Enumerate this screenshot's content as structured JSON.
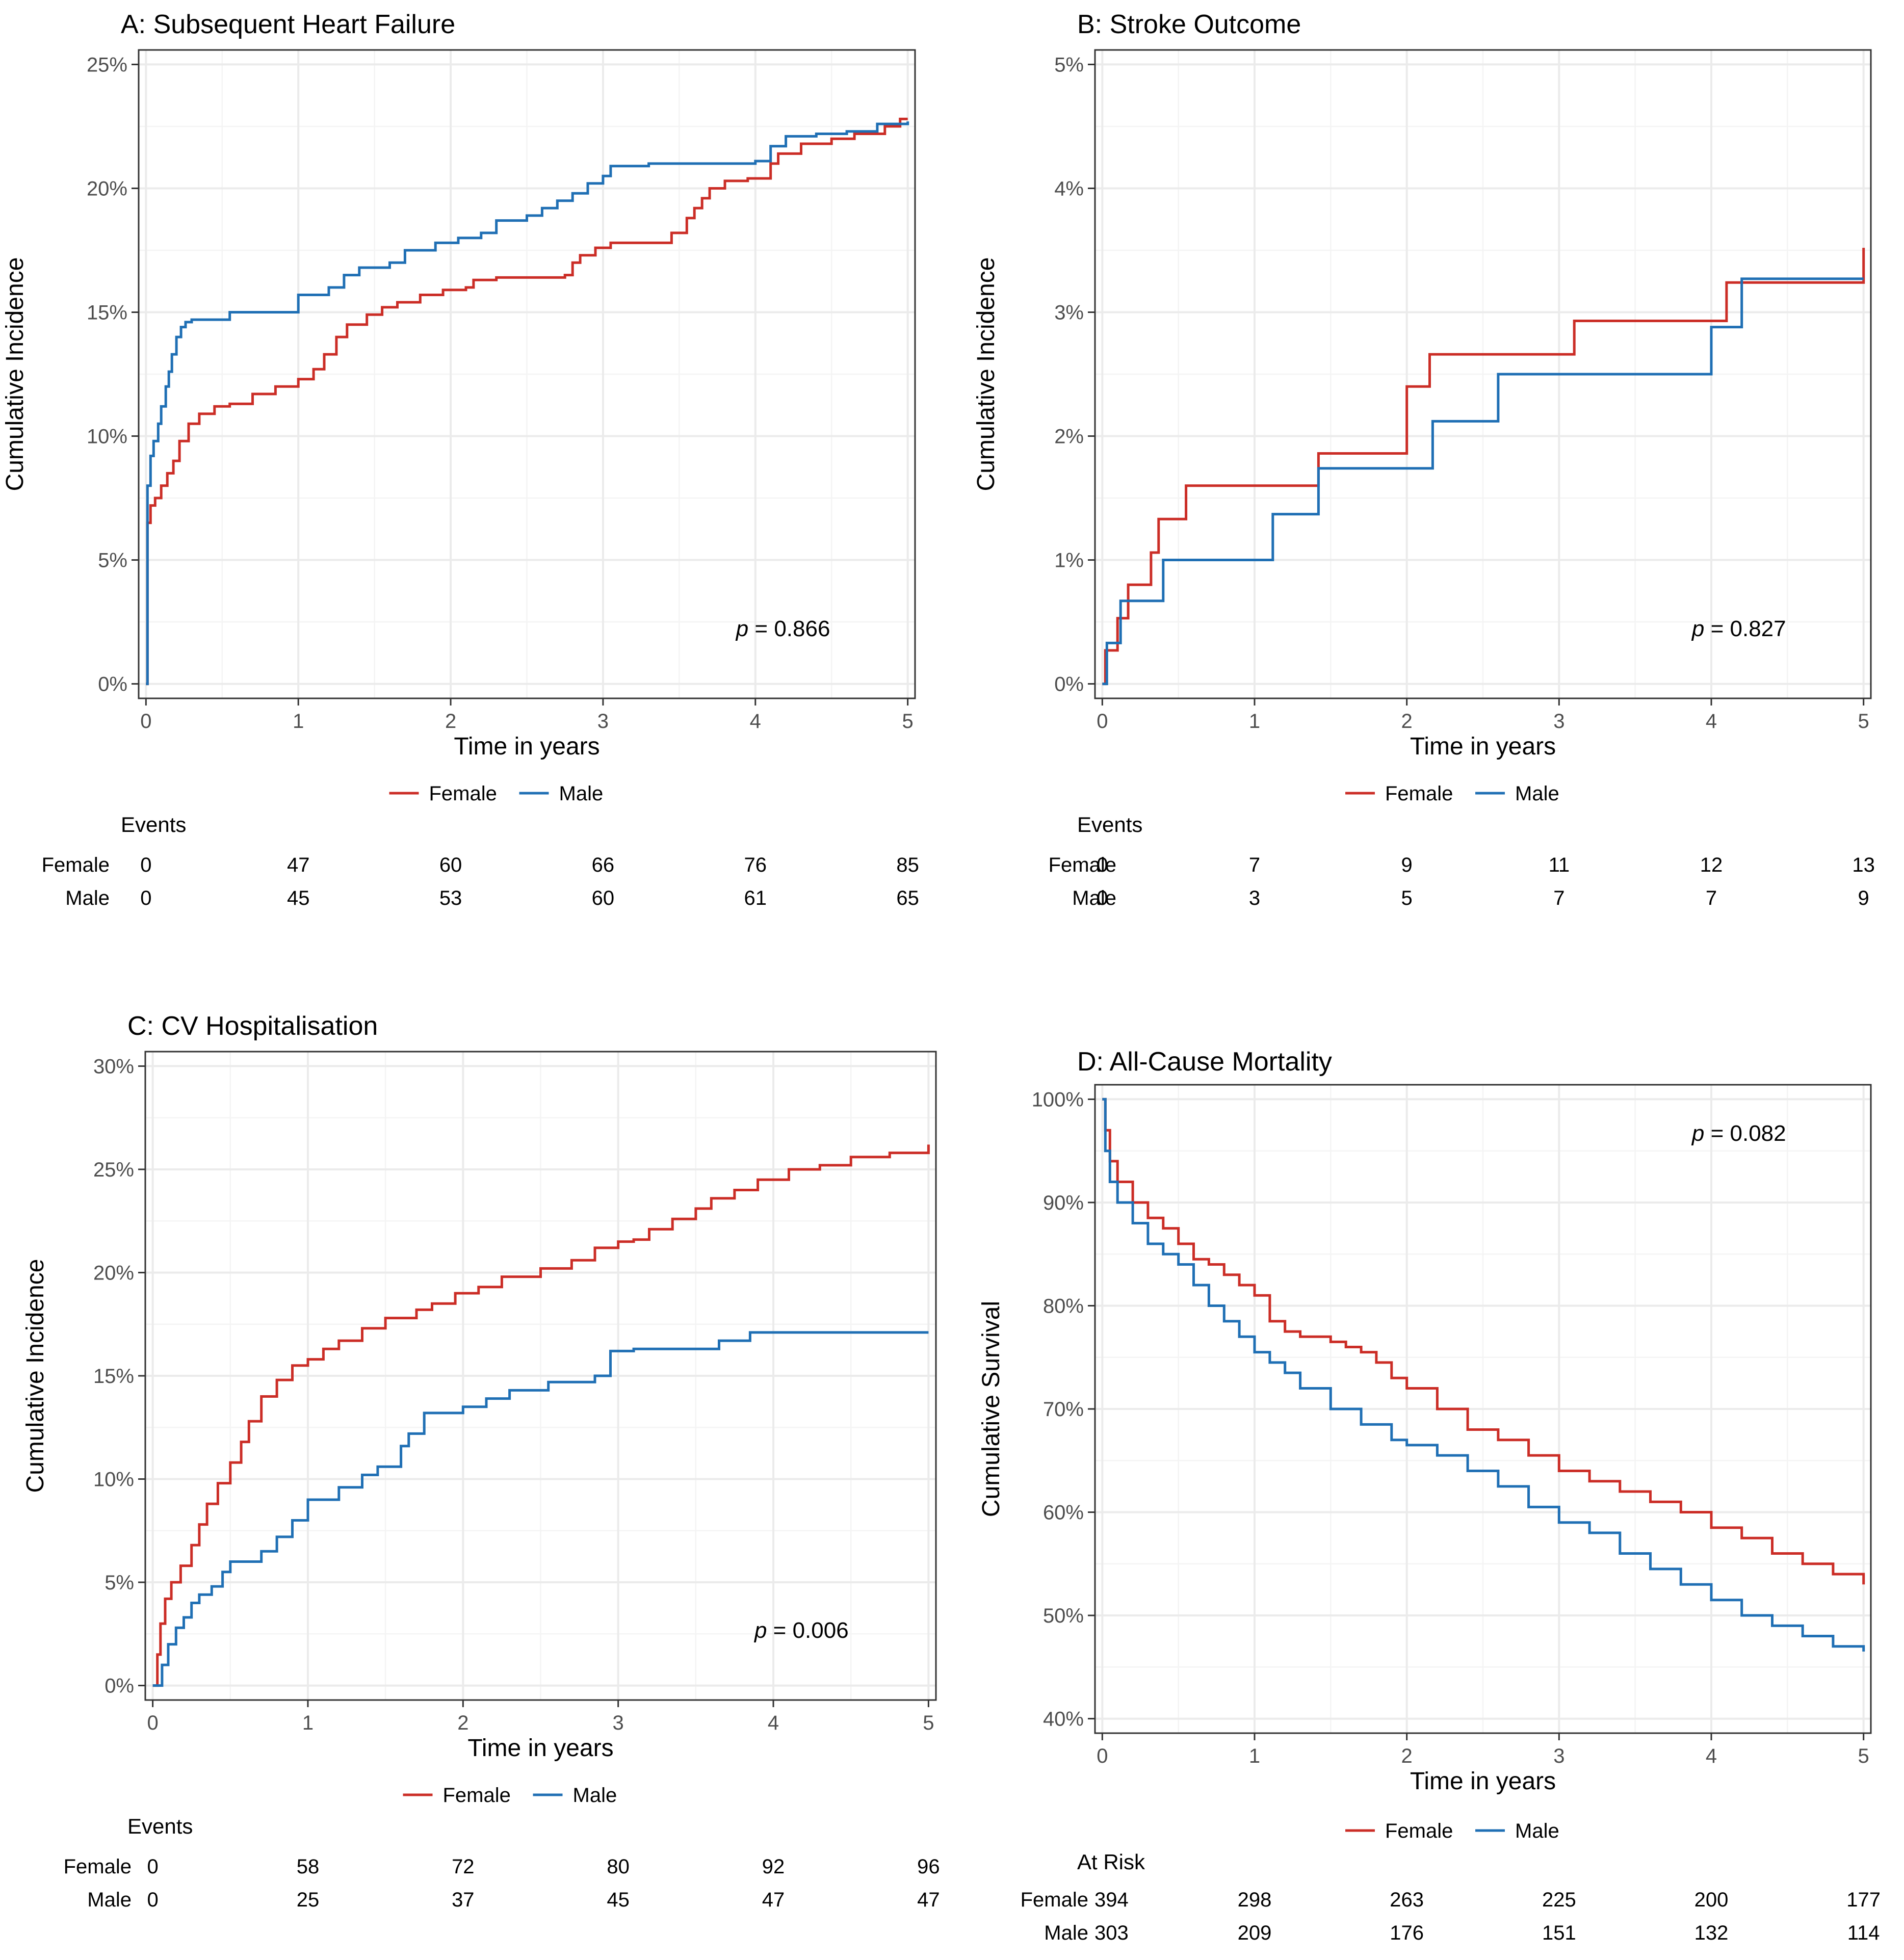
{
  "legend": {
    "female": "Female",
    "male": "Male"
  },
  "colors": {
    "female": "#cb2d26",
    "male": "#1f6fb4",
    "grid": "#ebebeb",
    "gridMinor": "#f4f4f4",
    "border": "#333333",
    "text": "#000000",
    "tick": "#4d4d4d"
  },
  "chart_data": [
    {
      "type": "line",
      "id": "A",
      "title": "A: Subsequent Heart Failure",
      "xlabel": "Time in years",
      "ylabel": "Cumulative Incidence",
      "xlim": [
        0,
        5
      ],
      "ylim": [
        0,
        25
      ],
      "xticks": [
        0,
        1,
        2,
        3,
        4,
        5
      ],
      "yticks": [
        "0%",
        "5%",
        "10%",
        "15%",
        "20%",
        "25%"
      ],
      "yticks_values": [
        0,
        5,
        10,
        15,
        20,
        25
      ],
      "p_label": "p",
      "p_value": "= 0.866",
      "table_title": "Events",
      "table_rows": [
        {
          "label": "Female",
          "values": [
            "0",
            "47",
            "60",
            "66",
            "76",
            "85"
          ]
        },
        {
          "label": "Male",
          "values": [
            "0",
            "45",
            "53",
            "60",
            "61",
            "65"
          ]
        }
      ],
      "series": [
        {
          "name": "Female",
          "x": [
            0,
            0.01,
            0.03,
            0.06,
            0.1,
            0.14,
            0.18,
            0.22,
            0.28,
            0.35,
            0.45,
            0.55,
            0.7,
            0.85,
            1.0,
            1.1,
            1.17,
            1.25,
            1.32,
            1.45,
            1.55,
            1.65,
            1.8,
            1.95,
            2.1,
            2.15,
            2.3,
            2.5,
            2.75,
            2.8,
            2.85,
            2.95,
            3.05,
            3.2,
            3.45,
            3.55,
            3.6,
            3.65,
            3.7,
            3.8,
            3.95,
            4.05,
            4.1,
            4.15,
            4.3,
            4.5,
            4.65,
            4.8,
            4.85,
            4.95,
            5.0
          ],
          "y": [
            0,
            6.5,
            7.2,
            7.5,
            8.0,
            8.5,
            9.0,
            9.8,
            10.5,
            10.9,
            11.2,
            11.3,
            11.7,
            12.0,
            12.3,
            12.7,
            13.3,
            14.0,
            14.5,
            14.9,
            15.2,
            15.4,
            15.7,
            15.9,
            16.0,
            16.3,
            16.4,
            16.4,
            16.5,
            17.0,
            17.3,
            17.6,
            17.8,
            17.8,
            18.2,
            18.8,
            19.2,
            19.6,
            20.0,
            20.3,
            20.4,
            20.4,
            21.0,
            21.4,
            21.8,
            22.0,
            22.2,
            22.2,
            22.5,
            22.8,
            22.8
          ]
        },
        {
          "name": "Male",
          "x": [
            0,
            0.01,
            0.03,
            0.05,
            0.08,
            0.1,
            0.13,
            0.15,
            0.17,
            0.2,
            0.23,
            0.26,
            0.3,
            0.55,
            0.8,
            1.0,
            1.2,
            1.3,
            1.4,
            1.6,
            1.7,
            1.9,
            2.05,
            2.2,
            2.3,
            2.5,
            2.6,
            2.7,
            2.8,
            2.9,
            3.0,
            3.05,
            3.3,
            3.55,
            3.8,
            4.0,
            4.1,
            4.2,
            4.4,
            4.6,
            4.8,
            5.0
          ],
          "y": [
            0,
            8.0,
            9.2,
            9.8,
            10.5,
            11.2,
            12.0,
            12.6,
            13.3,
            14.0,
            14.4,
            14.6,
            14.7,
            15.0,
            15.0,
            15.7,
            16.0,
            16.5,
            16.8,
            17.0,
            17.5,
            17.8,
            18.0,
            18.2,
            18.7,
            18.9,
            19.2,
            19.5,
            19.8,
            20.2,
            20.5,
            20.9,
            21.0,
            21.0,
            21.0,
            21.1,
            21.7,
            22.1,
            22.2,
            22.3,
            22.6,
            22.7
          ]
        }
      ]
    },
    {
      "type": "line",
      "id": "B",
      "title": "B: Stroke Outcome",
      "xlabel": "Time in years",
      "ylabel": "Cumulative Incidence",
      "xlim": [
        0,
        5
      ],
      "ylim": [
        0,
        5
      ],
      "xticks": [
        0,
        1,
        2,
        3,
        4,
        5
      ],
      "yticks": [
        "0%",
        "1%",
        "2%",
        "3%",
        "4%",
        "5%"
      ],
      "yticks_values": [
        0,
        1,
        2,
        3,
        4,
        5
      ],
      "p_label": "p",
      "p_value": "= 0.827",
      "table_title": "Events",
      "table_rows": [
        {
          "label": "Female",
          "values": [
            "0",
            "7",
            "9",
            "11",
            "12",
            "13"
          ]
        },
        {
          "label": "Male",
          "values": [
            "0",
            "3",
            "5",
            "7",
            "7",
            "9"
          ]
        }
      ],
      "series": [
        {
          "name": "Female",
          "x": [
            0,
            0.02,
            0.1,
            0.17,
            0.32,
            0.37,
            0.55,
            1.42,
            2.0,
            2.15,
            3.1,
            4.1,
            5.0
          ],
          "y": [
            0,
            0.27,
            0.53,
            0.8,
            1.06,
            1.33,
            1.6,
            1.86,
            2.4,
            2.66,
            2.93,
            3.24,
            3.52
          ]
        },
        {
          "name": "Male",
          "x": [
            0,
            0.03,
            0.12,
            0.4,
            1.12,
            1.42,
            2.17,
            2.6,
            4.0,
            4.2,
            5.0
          ],
          "y": [
            0,
            0.33,
            0.67,
            1.0,
            1.37,
            1.74,
            2.12,
            2.5,
            2.88,
            3.27,
            3.27
          ]
        }
      ]
    },
    {
      "type": "line",
      "id": "C",
      "title": "C: CV Hospitalisation",
      "xlabel": "Time in years",
      "ylabel": "Cumulative Incidence",
      "xlim": [
        0,
        5
      ],
      "ylim": [
        0,
        30
      ],
      "xticks": [
        0,
        1,
        2,
        3,
        4,
        5
      ],
      "yticks": [
        "0%",
        "5%",
        "10%",
        "15%",
        "20%",
        "25%",
        "30%"
      ],
      "yticks_values": [
        0,
        5,
        10,
        15,
        20,
        25,
        30
      ],
      "p_label": "p",
      "p_value": "= 0.006",
      "table_title": "Events",
      "table_rows": [
        {
          "label": "Female",
          "values": [
            "0",
            "58",
            "72",
            "80",
            "92",
            "96"
          ]
        },
        {
          "label": "Male",
          "values": [
            "0",
            "25",
            "37",
            "45",
            "47",
            "47"
          ]
        }
      ],
      "series": [
        {
          "name": "Female",
          "x": [
            0,
            0.03,
            0.05,
            0.08,
            0.12,
            0.18,
            0.25,
            0.3,
            0.35,
            0.42,
            0.5,
            0.57,
            0.62,
            0.7,
            0.8,
            0.9,
            1.0,
            1.1,
            1.2,
            1.35,
            1.5,
            1.7,
            1.8,
            1.95,
            2.1,
            2.25,
            2.5,
            2.7,
            2.85,
            3.0,
            3.1,
            3.2,
            3.35,
            3.5,
            3.6,
            3.75,
            3.9,
            4.1,
            4.3,
            4.5,
            4.75,
            5.0
          ],
          "y": [
            0,
            1.5,
            3.0,
            4.2,
            5.0,
            5.8,
            6.8,
            7.8,
            8.8,
            9.8,
            10.8,
            11.8,
            12.8,
            14.0,
            14.8,
            15.5,
            15.8,
            16.3,
            16.7,
            17.3,
            17.8,
            18.2,
            18.5,
            19.0,
            19.3,
            19.8,
            20.2,
            20.6,
            21.2,
            21.5,
            21.6,
            22.1,
            22.6,
            23.1,
            23.6,
            24.0,
            24.5,
            25.0,
            25.2,
            25.6,
            25.8,
            26.2
          ]
        },
        {
          "name": "Male",
          "x": [
            0,
            0.06,
            0.1,
            0.15,
            0.2,
            0.25,
            0.3,
            0.38,
            0.45,
            0.5,
            0.7,
            0.8,
            0.9,
            1.0,
            1.2,
            1.35,
            1.45,
            1.6,
            1.65,
            1.75,
            1.85,
            2.0,
            2.15,
            2.3,
            2.55,
            2.85,
            2.95,
            3.1,
            3.45,
            3.65,
            3.85,
            4.2,
            5.0
          ],
          "y": [
            0,
            1.0,
            2.0,
            2.8,
            3.3,
            4.0,
            4.4,
            4.8,
            5.5,
            6.0,
            6.5,
            7.2,
            8.0,
            9.0,
            9.6,
            10.2,
            10.6,
            11.6,
            12.2,
            13.2,
            13.2,
            13.5,
            13.9,
            14.3,
            14.7,
            15.0,
            16.2,
            16.3,
            16.3,
            16.7,
            17.1,
            17.1,
            17.1
          ]
        }
      ]
    },
    {
      "type": "line",
      "id": "D",
      "title": "D: All-Cause Mortality",
      "xlabel": "Time in years",
      "ylabel": "Cumulative Survival",
      "xlim": [
        0,
        5
      ],
      "ylim": [
        40,
        100
      ],
      "xticks": [
        0,
        1,
        2,
        3,
        4,
        5
      ],
      "yticks": [
        "40%",
        "50%",
        "60%",
        "70%",
        "80%",
        "90%",
        "100%"
      ],
      "yticks_values": [
        40,
        50,
        60,
        70,
        80,
        90,
        100
      ],
      "p_label": "p",
      "p_value": "= 0.082",
      "table_title": "At Risk",
      "table_rows": [
        {
          "label": "Female",
          "values": [
            "394",
            "298",
            "263",
            "225",
            "200",
            "177"
          ]
        },
        {
          "label": "Male",
          "values": [
            "303",
            "209",
            "176",
            "151",
            "132",
            "114"
          ]
        }
      ],
      "series": [
        {
          "name": "Female",
          "x": [
            0,
            0.02,
            0.05,
            0.1,
            0.2,
            0.3,
            0.4,
            0.5,
            0.6,
            0.7,
            0.8,
            0.9,
            1.0,
            1.1,
            1.2,
            1.3,
            1.5,
            1.6,
            1.7,
            1.8,
            1.9,
            2.0,
            2.2,
            2.4,
            2.6,
            2.8,
            3.0,
            3.2,
            3.4,
            3.6,
            3.8,
            4.0,
            4.2,
            4.4,
            4.6,
            4.8,
            5.0
          ],
          "y": [
            100,
            97,
            94,
            92,
            90,
            88.5,
            87.5,
            86,
            84.5,
            84,
            83,
            82,
            81,
            78.5,
            77.5,
            77,
            76.5,
            76,
            75.5,
            74.5,
            73,
            72,
            70,
            68,
            67,
            65.5,
            64,
            63,
            62,
            61,
            60,
            58.5,
            57.5,
            56,
            55,
            54,
            53
          ]
        },
        {
          "name": "Male",
          "x": [
            0,
            0.02,
            0.05,
            0.1,
            0.2,
            0.3,
            0.4,
            0.5,
            0.6,
            0.7,
            0.8,
            0.9,
            1.0,
            1.1,
            1.2,
            1.3,
            1.5,
            1.7,
            1.9,
            2.0,
            2.2,
            2.4,
            2.6,
            2.8,
            3.0,
            3.2,
            3.4,
            3.6,
            3.8,
            4.0,
            4.2,
            4.4,
            4.6,
            4.8,
            5.0
          ],
          "y": [
            100,
            95,
            92,
            90,
            88,
            86,
            85,
            84,
            82,
            80,
            78.5,
            77,
            75.5,
            74.5,
            73.5,
            72,
            70,
            68.5,
            67,
            66.5,
            65.5,
            64,
            62.5,
            60.5,
            59,
            58,
            56,
            54.5,
            53,
            51.5,
            50,
            49,
            48,
            47,
            46.5
          ]
        }
      ]
    }
  ]
}
